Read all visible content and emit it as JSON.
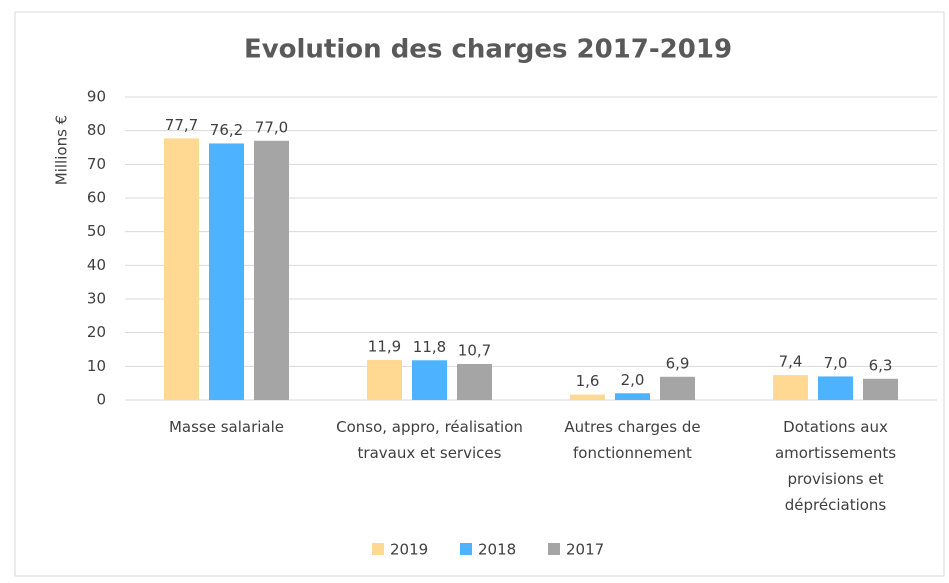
{
  "chart_data": {
    "type": "bar",
    "title": "Evolution des charges 2017-2019",
    "y_label": "Millions €",
    "categories": [
      "Masse salariale",
      "Conso, appro, réalisation travaux et services",
      "Autres charges de fonctionnement",
      "Dotations aux amortissements provisions et dépréciations"
    ],
    "series": [
      {
        "name": "2019",
        "color": "#ffd992",
        "values": [
          77.7,
          11.9,
          1.6,
          7.4
        ],
        "value_labels": [
          "77,7",
          "11,9",
          "1,6",
          "7,4"
        ]
      },
      {
        "name": "2018",
        "color": "#4db2ff",
        "values": [
          76.2,
          11.8,
          2.0,
          7.0
        ],
        "value_labels": [
          "76,2",
          "11,8",
          "2,0",
          "7,0"
        ]
      },
      {
        "name": "2017",
        "color": "#a5a5a5",
        "values": [
          77.0,
          10.7,
          6.9,
          6.3
        ],
        "value_labels": [
          "77,0",
          "10,7",
          "6,9",
          "6,3"
        ]
      }
    ],
    "ylim": [
      0,
      90
    ],
    "yticks": [
      0,
      10,
      20,
      30,
      40,
      50,
      60,
      70,
      80,
      90
    ],
    "grid": true,
    "legend": "bottom"
  }
}
